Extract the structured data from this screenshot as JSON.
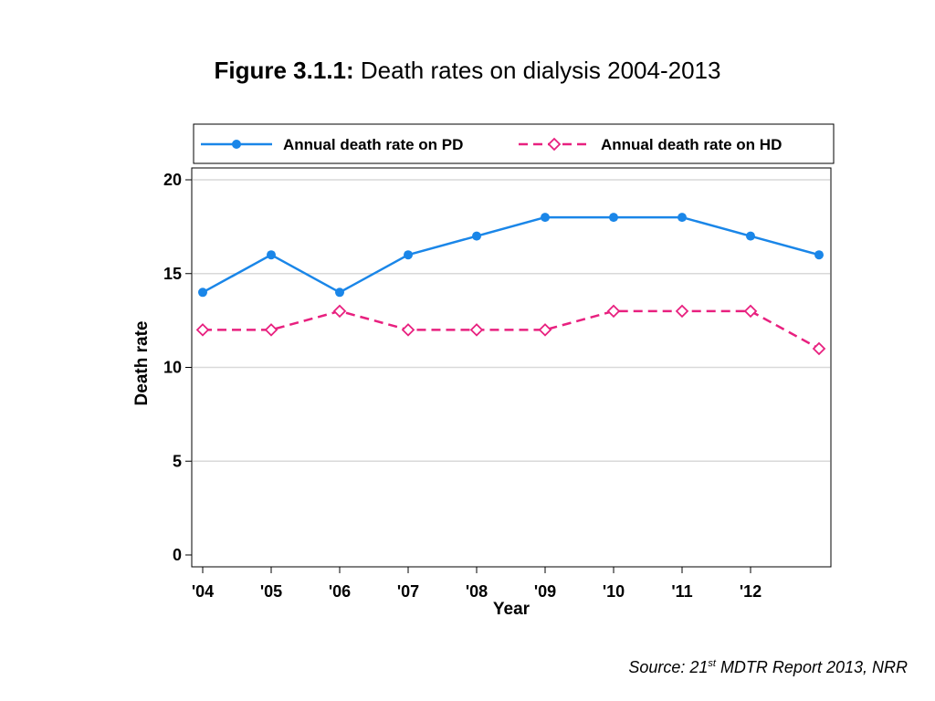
{
  "title": {
    "figure_label": "Figure 3.1.1:",
    "text": "Death rates on dialysis 2004-2013"
  },
  "source": {
    "prefix": "Source: 21",
    "superscript": "st",
    "suffix": " MDTR Report 2013, NRR"
  },
  "chart_data": {
    "type": "line",
    "xlabel": "Year",
    "ylabel": "Death rate",
    "x_tick_labels": [
      "'04",
      "'05",
      "'06",
      "'07",
      "'08",
      "'09",
      "'10",
      "'11",
      "'12"
    ],
    "x": [
      2004,
      2005,
      2006,
      2007,
      2008,
      2009,
      2010,
      2011,
      2012,
      2013
    ],
    "xlim": [
      2004,
      2013
    ],
    "ylim": [
      0,
      20
    ],
    "y_ticks": [
      0,
      5,
      10,
      15,
      20
    ],
    "grid": true,
    "legend_position": "top",
    "series": [
      {
        "name": "Annual death rate on PD",
        "color": "#1a86e8",
        "style": "solid",
        "marker": "circle",
        "values": [
          14,
          16,
          14,
          16,
          17,
          18,
          18,
          18,
          17,
          16
        ]
      },
      {
        "name": "Annual death rate on HD",
        "color": "#e8207f",
        "style": "dashed",
        "marker": "hollow-diamond",
        "values": [
          12,
          12,
          13,
          12,
          12,
          12,
          13,
          13,
          13,
          11
        ]
      }
    ]
  }
}
